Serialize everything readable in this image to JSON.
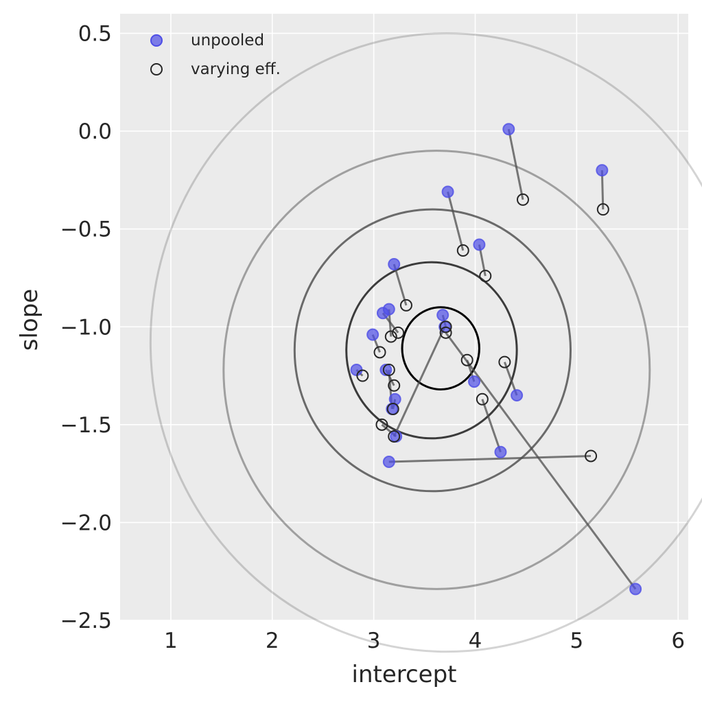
{
  "chart_data": {
    "type": "scatter",
    "title": "",
    "xlabel": "intercept",
    "ylabel": "slope",
    "xlim": [
      0.5,
      6.1
    ],
    "ylim": [
      -2.5,
      0.6
    ],
    "x_ticks": [
      1,
      2,
      3,
      4,
      5,
      6
    ],
    "y_ticks": [
      0.5,
      0.0,
      -0.5,
      -1.0,
      -1.5,
      -2.0,
      -2.5
    ],
    "grid": true,
    "legend_position": "top-left",
    "colors": {
      "background": "#ebebeb",
      "grid": "#ffffff",
      "unpooled": "#4d4de6",
      "varying": "#262626",
      "segment": "#4d4d4d"
    },
    "series": [
      {
        "name": "unpooled",
        "marker": "filled-circle",
        "points": [
          [
            4.33,
            0.01
          ],
          [
            5.25,
            -0.2
          ],
          [
            3.73,
            -0.31
          ],
          [
            4.04,
            -0.58
          ],
          [
            3.2,
            -0.68
          ],
          [
            3.15,
            -0.91
          ],
          [
            3.09,
            -0.93
          ],
          [
            2.99,
            -1.04
          ],
          [
            3.68,
            -0.94
          ],
          [
            2.83,
            -1.22
          ],
          [
            3.12,
            -1.22
          ],
          [
            3.99,
            -1.28
          ],
          [
            3.21,
            -1.37
          ],
          [
            4.41,
            -1.35
          ],
          [
            3.22,
            -1.56
          ],
          [
            4.25,
            -1.64
          ],
          [
            3.15,
            -1.69
          ],
          [
            5.58,
            -2.34
          ],
          [
            3.7,
            -1.0
          ],
          [
            3.18,
            -1.42
          ]
        ]
      },
      {
        "name": "varying eff.",
        "marker": "open-circle",
        "points": [
          [
            4.47,
            -0.35
          ],
          [
            5.26,
            -0.4
          ],
          [
            3.88,
            -0.61
          ],
          [
            4.1,
            -0.74
          ],
          [
            3.32,
            -0.89
          ],
          [
            3.17,
            -1.05
          ],
          [
            3.24,
            -1.03
          ],
          [
            3.06,
            -1.13
          ],
          [
            3.71,
            -1.0
          ],
          [
            2.89,
            -1.25
          ],
          [
            3.2,
            -1.3
          ],
          [
            3.92,
            -1.17
          ],
          [
            3.19,
            -1.42
          ],
          [
            4.29,
            -1.18
          ],
          [
            3.08,
            -1.5
          ],
          [
            4.07,
            -1.37
          ],
          [
            5.14,
            -1.66
          ],
          [
            3.71,
            -1.03
          ],
          [
            3.2,
            -1.56
          ],
          [
            3.15,
            -1.22
          ]
        ]
      }
    ],
    "contours": [
      {
        "level": 0.1,
        "center": [
          3.66,
          -1.11
        ],
        "half_axes": [
          0.38,
          0.21
        ],
        "opacity": 1.0
      },
      {
        "level": 0.3,
        "center": [
          3.57,
          -1.12
        ],
        "half_axes": [
          0.84,
          0.45
        ],
        "opacity": 0.75
      },
      {
        "level": 0.5,
        "center": [
          3.58,
          -1.12
        ],
        "half_axes": [
          1.36,
          0.72
        ],
        "opacity": 0.55
      },
      {
        "level": 0.8,
        "center": [
          3.62,
          -1.22
        ],
        "half_axes": [
          2.1,
          1.12
        ],
        "opacity": 0.32
      },
      {
        "level": 0.99,
        "center": [
          3.72,
          -1.08
        ],
        "half_axes": [
          2.92,
          1.58
        ],
        "opacity": 0.17
      }
    ]
  }
}
